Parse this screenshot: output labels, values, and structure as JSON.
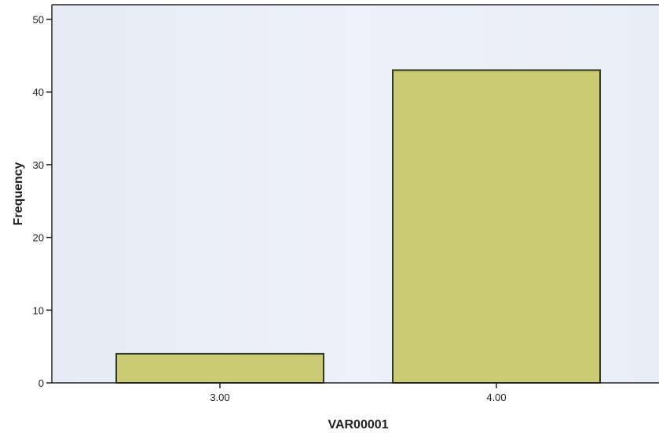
{
  "chart_data": {
    "type": "bar",
    "categories": [
      "3.00",
      "4.00"
    ],
    "values": [
      4,
      43
    ],
    "xlabel": "VAR00001",
    "ylabel": "Frequency",
    "ylim": [
      0,
      52
    ],
    "yticks": [
      0,
      10,
      20,
      30,
      40,
      50
    ],
    "grid": false,
    "legend": "none",
    "colors": {
      "bar_fill": "#CBCB73",
      "bar_stroke": "#2F3A24",
      "plot_background": "#E8EDF7",
      "axis": "#222222"
    }
  }
}
